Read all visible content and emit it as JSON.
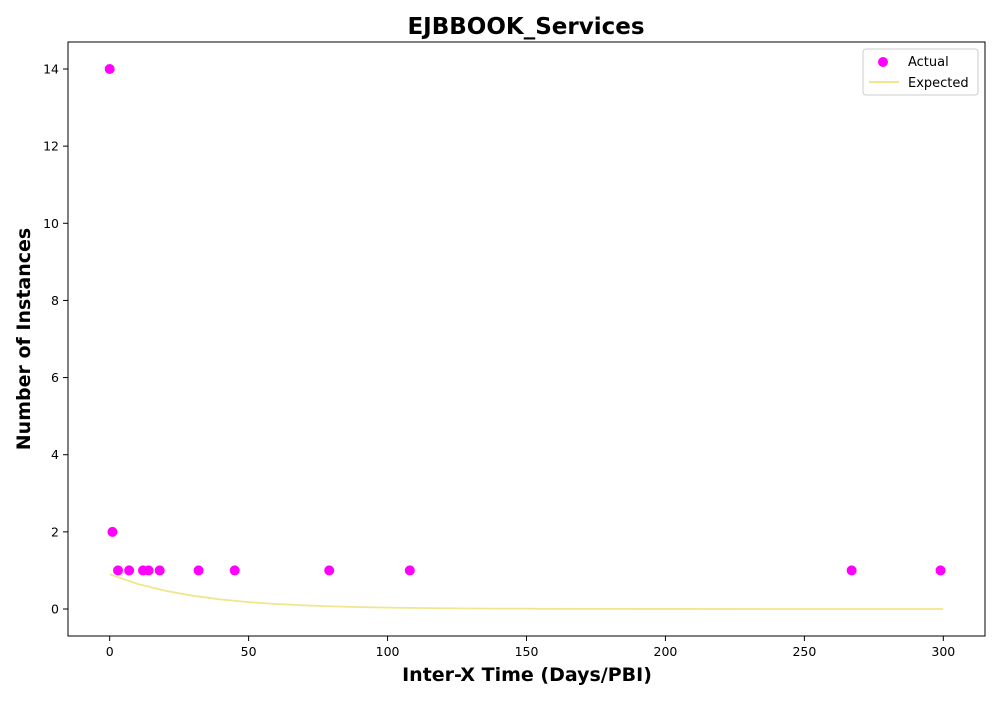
{
  "chart_data": {
    "type": "scatter",
    "title": "EJBBOOK_Services",
    "xlabel": "Inter-X Time (Days/PBI)",
    "ylabel": "Number of Instances",
    "xlim": [
      -15,
      315
    ],
    "ylim": [
      -0.7,
      14.7
    ],
    "xticks": [
      0,
      50,
      100,
      150,
      200,
      250,
      300
    ],
    "yticks": [
      0,
      2,
      4,
      6,
      8,
      10,
      12,
      14
    ],
    "grid": false,
    "legend_position": "top-right",
    "series": [
      {
        "name": "Actual",
        "kind": "scatter",
        "color": "#ff00ff",
        "points": [
          {
            "x": 0,
            "y": 14
          },
          {
            "x": 1,
            "y": 2
          },
          {
            "x": 3,
            "y": 1
          },
          {
            "x": 7,
            "y": 1
          },
          {
            "x": 12,
            "y": 1
          },
          {
            "x": 14,
            "y": 1
          },
          {
            "x": 18,
            "y": 1
          },
          {
            "x": 32,
            "y": 1
          },
          {
            "x": 45,
            "y": 1
          },
          {
            "x": 79,
            "y": 1
          },
          {
            "x": 108,
            "y": 1
          },
          {
            "x": 267,
            "y": 1
          },
          {
            "x": 299,
            "y": 1
          }
        ]
      },
      {
        "name": "Expected",
        "kind": "line",
        "color": "#f0e68c",
        "points": [
          {
            "x": 0,
            "y": 0.9
          },
          {
            "x": 10,
            "y": 0.652
          },
          {
            "x": 20,
            "y": 0.472
          },
          {
            "x": 30,
            "y": 0.342
          },
          {
            "x": 40,
            "y": 0.248
          },
          {
            "x": 50,
            "y": 0.179
          },
          {
            "x": 60,
            "y": 0.13
          },
          {
            "x": 70,
            "y": 0.094
          },
          {
            "x": 80,
            "y": 0.068
          },
          {
            "x": 90,
            "y": 0.049
          },
          {
            "x": 100,
            "y": 0.036
          },
          {
            "x": 120,
            "y": 0.019
          },
          {
            "x": 140,
            "y": 0.01
          },
          {
            "x": 160,
            "y": 0.005
          },
          {
            "x": 180,
            "y": 0.003
          },
          {
            "x": 200,
            "y": 0.001
          },
          {
            "x": 250,
            "y": 0.0
          },
          {
            "x": 300,
            "y": 0.0
          }
        ]
      }
    ]
  }
}
